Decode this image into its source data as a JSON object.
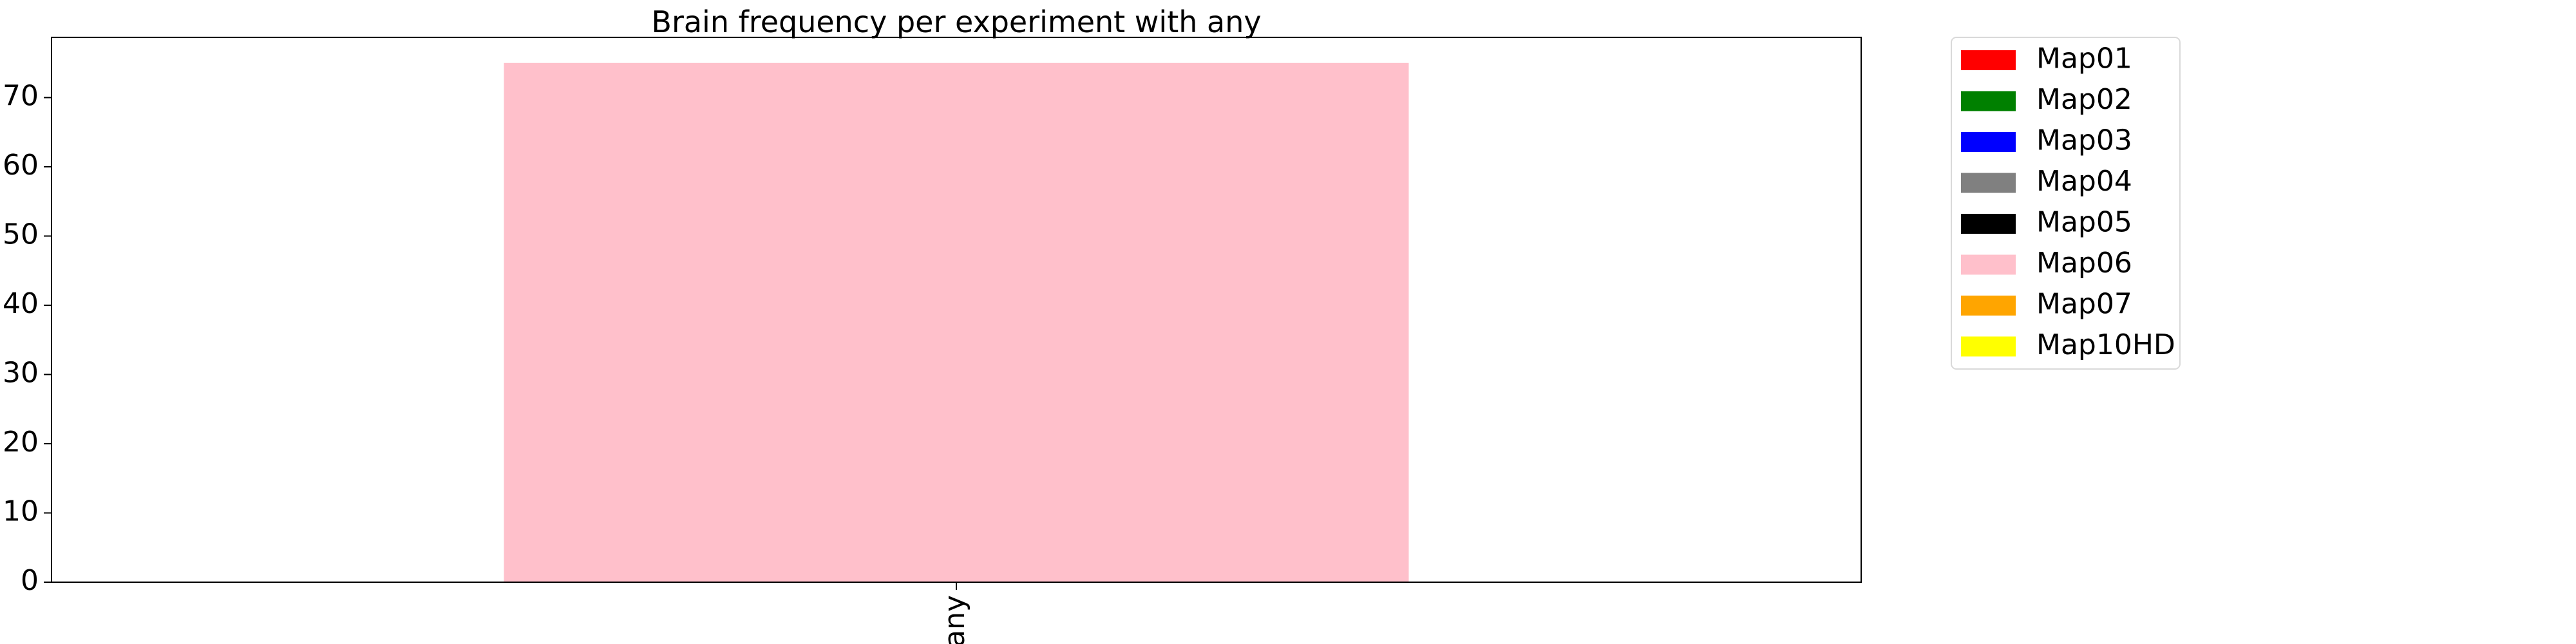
{
  "chart_data": {
    "type": "bar",
    "title": "Brain frequency per experiment with any",
    "xlabel": "",
    "ylabel": "",
    "categories": [
      "any"
    ],
    "ylim": [
      0,
      78.7
    ],
    "yticks": [
      0,
      10,
      20,
      30,
      40,
      50,
      60,
      70
    ],
    "grid": false,
    "legend_position": "outside-right-top",
    "series": [
      {
        "name": "Map01",
        "color": "#ff0000",
        "values": [
          0
        ]
      },
      {
        "name": "Map02",
        "color": "#008000",
        "values": [
          0
        ]
      },
      {
        "name": "Map03",
        "color": "#0000ff",
        "values": [
          0
        ]
      },
      {
        "name": "Map04",
        "color": "#808080",
        "values": [
          0
        ]
      },
      {
        "name": "Map05",
        "color": "#000000",
        "values": [
          0
        ]
      },
      {
        "name": "Map06",
        "color": "#ffc0cb",
        "values": [
          75
        ]
      },
      {
        "name": "Map07",
        "color": "#ffa500",
        "values": [
          0
        ]
      },
      {
        "name": "Map10HD",
        "color": "#ffff00",
        "values": [
          0
        ]
      }
    ]
  }
}
